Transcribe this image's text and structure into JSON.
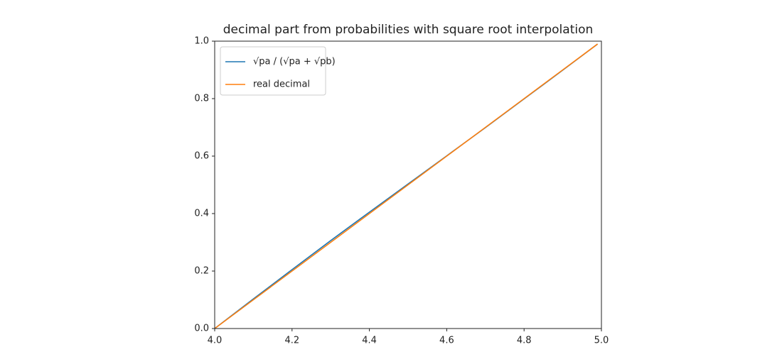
{
  "chart_data": {
    "type": "line",
    "title": "decimal part from probabilities with square root interpolation",
    "x": [
      4.0,
      4.1,
      4.2,
      4.3,
      4.4,
      4.5,
      4.6,
      4.7,
      4.8,
      4.9,
      4.99
    ],
    "series": [
      {
        "name": "√pa / (√pa + √pb)",
        "color": "#1f77b4",
        "values": [
          0,
          0.103,
          0.205,
          0.306,
          0.405,
          0.503,
          0.601,
          0.699,
          0.799,
          0.899,
          0.99
        ]
      },
      {
        "name": "real decimal",
        "color": "#ff7f0e",
        "values": [
          0,
          0.1,
          0.2,
          0.3,
          0.4,
          0.5,
          0.6,
          0.7,
          0.8,
          0.9,
          0.99
        ]
      }
    ],
    "xlim": [
      4,
      5
    ],
    "ylim": [
      0,
      1
    ],
    "xticks": [
      {
        "value": 4,
        "label": "4.0"
      },
      4.2,
      4.4,
      4.6,
      4.8,
      {
        "value": 5,
        "label": "5.0"
      }
    ],
    "yticks": [
      {
        "value": 0,
        "label": "0.0"
      },
      0.2,
      0.4,
      0.6,
      0.8,
      {
        "value": 1,
        "label": "1.0"
      }
    ],
    "legend": "upper left"
  }
}
